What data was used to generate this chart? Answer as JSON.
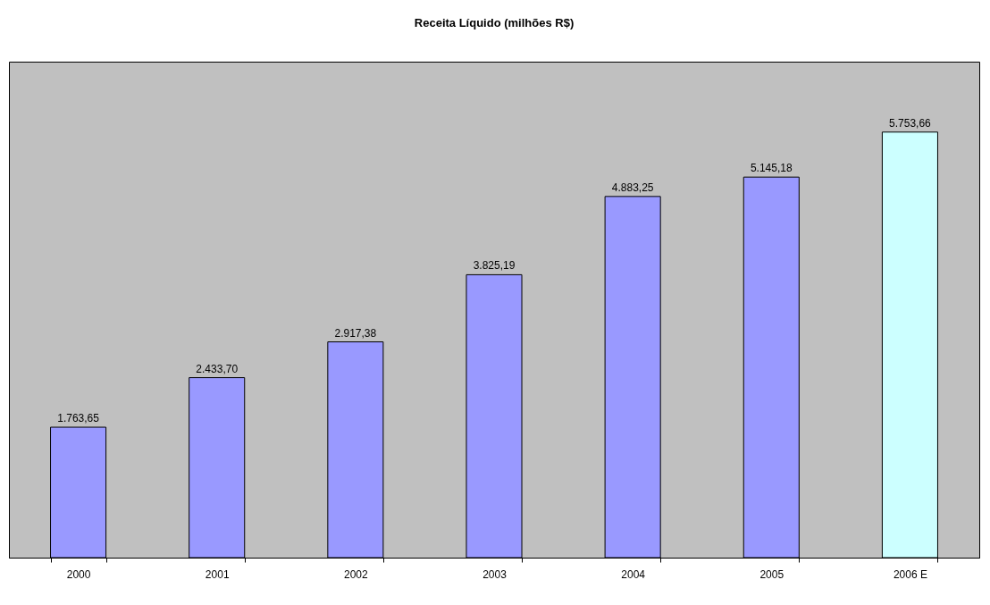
{
  "chart_data": {
    "type": "bar",
    "title": "Receita Líquido (milhões R$)",
    "categories": [
      "2000",
      "2001",
      "2002",
      "2003",
      "2004",
      "2005",
      "2006 E"
    ],
    "values": [
      1763.65,
      2433.7,
      2917.38,
      3825.19,
      4883.25,
      5145.18,
      5753.66
    ],
    "colors": [
      "#9999ff",
      "#9999ff",
      "#9999ff",
      "#9999ff",
      "#9999ff",
      "#9999ff",
      "#ccffff"
    ],
    "value_labels": [
      "1.763,65",
      "2.433,70",
      "2.917,38",
      "3.825,19",
      "4.883,25",
      "5.145,18",
      "5.753,66"
    ],
    "tick_labels": "x",
    "grid": false,
    "legend": false
  }
}
